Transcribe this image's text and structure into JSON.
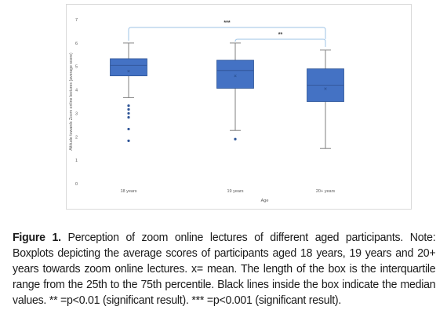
{
  "chart_data": {
    "type": "boxplot",
    "xlabel": "Age",
    "ylabel": "Attitude towards Zoom online lectures (average score)",
    "ylim": [
      0,
      7
    ],
    "yticks": [
      "0",
      "1",
      "2",
      "3",
      "4",
      "5",
      "6",
      "7"
    ],
    "grid": false,
    "categories": [
      "18 years",
      "19 years",
      "20+ years"
    ],
    "colors": {
      "box": "#4472c4",
      "box_stroke": "#2f5597",
      "whisker": "#7f7f7f",
      "mean": "#2f5597",
      "bracket": "#9dc3e6"
    },
    "boxes": [
      {
        "label": "18 years",
        "whisker_low": 3.67,
        "q1": 4.6,
        "median": 5.05,
        "q3": 5.33,
        "whisker_high": 6.0,
        "mean": 4.8,
        "outliers": [
          3.33,
          3.17,
          3.0,
          2.83,
          2.33,
          1.83
        ]
      },
      {
        "label": "19 years",
        "whisker_low": 2.27,
        "q1": 4.07,
        "median": 4.83,
        "q3": 5.27,
        "whisker_high": 6.0,
        "mean": 4.6,
        "outliers": [
          1.9
        ]
      },
      {
        "label": "20+ years",
        "whisker_low": 1.5,
        "q1": 3.5,
        "median": 4.2,
        "q3": 4.9,
        "whisker_high": 5.7,
        "mean": 4.05,
        "outliers": []
      }
    ],
    "annotations": [
      {
        "text": "***",
        "from": "18 years",
        "to": "20+ years"
      },
      {
        "text": "**",
        "from": "19 years",
        "to": "20+ years"
      }
    ]
  },
  "caption": {
    "label": "Figure 1.",
    "text": " Perception of zoom online lectures of different aged participants. Note: Boxplots depicting the average scores of participants aged 18 years, 19 years and 20+ years towards zoom online lectures. x= mean. The length of the box is the interquartile range from the 25th to the 75th percentile. Black lines inside the box indicate the median values. ** =p<0.01 (significant result). *** =p<0.001 (significant result)."
  }
}
